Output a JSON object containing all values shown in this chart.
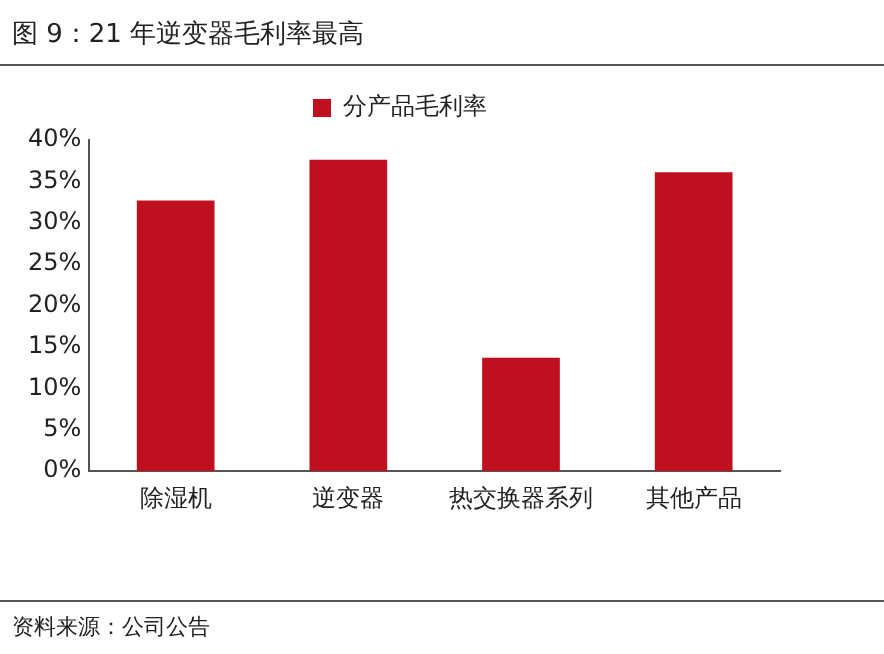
{
  "chart_data": {
    "type": "bar",
    "title": "图 9：21 年逆变器毛利率最高",
    "categories": [
      "除湿机",
      "逆变器",
      "热交换器系列",
      "其他产品"
    ],
    "series": [
      {
        "name": "分产品毛利率",
        "color": "#c00f1e",
        "values": [
          32.7,
          37.6,
          13.7,
          36.1
        ]
      }
    ],
    "ylim": [
      0,
      40
    ],
    "yticks": [
      {
        "value": 0,
        "label": "0%"
      },
      {
        "value": 5,
        "label": "5%"
      },
      {
        "value": 10,
        "label": "10%"
      },
      {
        "value": 15,
        "label": "15%"
      },
      {
        "value": 20,
        "label": "20%"
      },
      {
        "value": 25,
        "label": "25%"
      },
      {
        "value": 30,
        "label": "30%"
      },
      {
        "value": 35,
        "label": "35%"
      },
      {
        "value": 40,
        "label": "40%"
      }
    ],
    "grid": false,
    "legend": "top",
    "annotations": [
      "资料来源：公司公告"
    ]
  }
}
